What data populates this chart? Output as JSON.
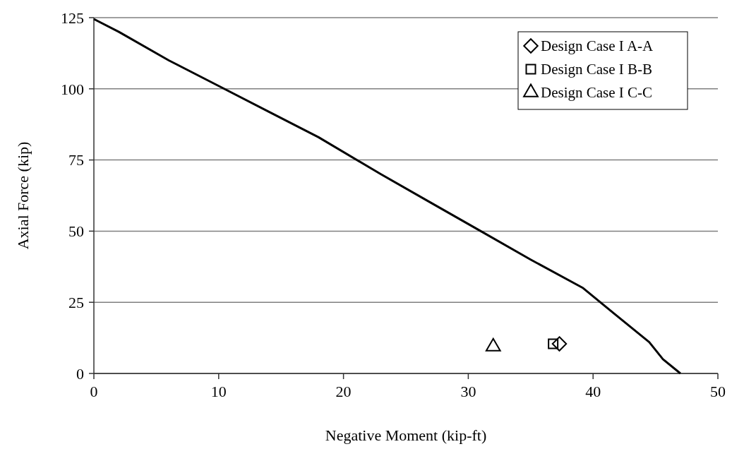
{
  "chart_data": {
    "type": "line",
    "xlabel": "Negative Moment (kip-ft)",
    "ylabel": "Axial Force (kip)",
    "xlim": [
      0,
      50
    ],
    "xticks": [
      0,
      10,
      20,
      30,
      40,
      50
    ],
    "ylim": [
      0,
      125
    ],
    "yticks": [
      0,
      25,
      50,
      75,
      100,
      125
    ],
    "grid": "y",
    "legend": "top right",
    "series": [
      {
        "color": "#000000",
        "marker": "none",
        "x": [
          0,
          2,
          6,
          10,
          14,
          18,
          23,
          27,
          31,
          35,
          39.2,
          41.7,
          44.5,
          45.6,
          47
        ],
        "values": [
          124.5,
          120,
          110,
          101,
          92,
          83,
          70,
          60,
          50,
          40,
          30,
          21,
          11,
          5,
          0
        ]
      },
      {
        "type": "scatter",
        "name": "Design Case I A-A",
        "color": "#000000",
        "marker": "diamond",
        "x": [
          37.3
        ],
        "values": [
          10.4
        ]
      },
      {
        "type": "scatter",
        "name": "Design Case I B-B",
        "color": "#000000",
        "marker": "square",
        "x": [
          36.8
        ],
        "values": [
          10.4
        ]
      },
      {
        "type": "scatter",
        "name": "Design Case I C-C",
        "color": "#000000",
        "marker": "triangle",
        "x": [
          32
        ],
        "values": [
          9.4
        ]
      }
    ]
  }
}
